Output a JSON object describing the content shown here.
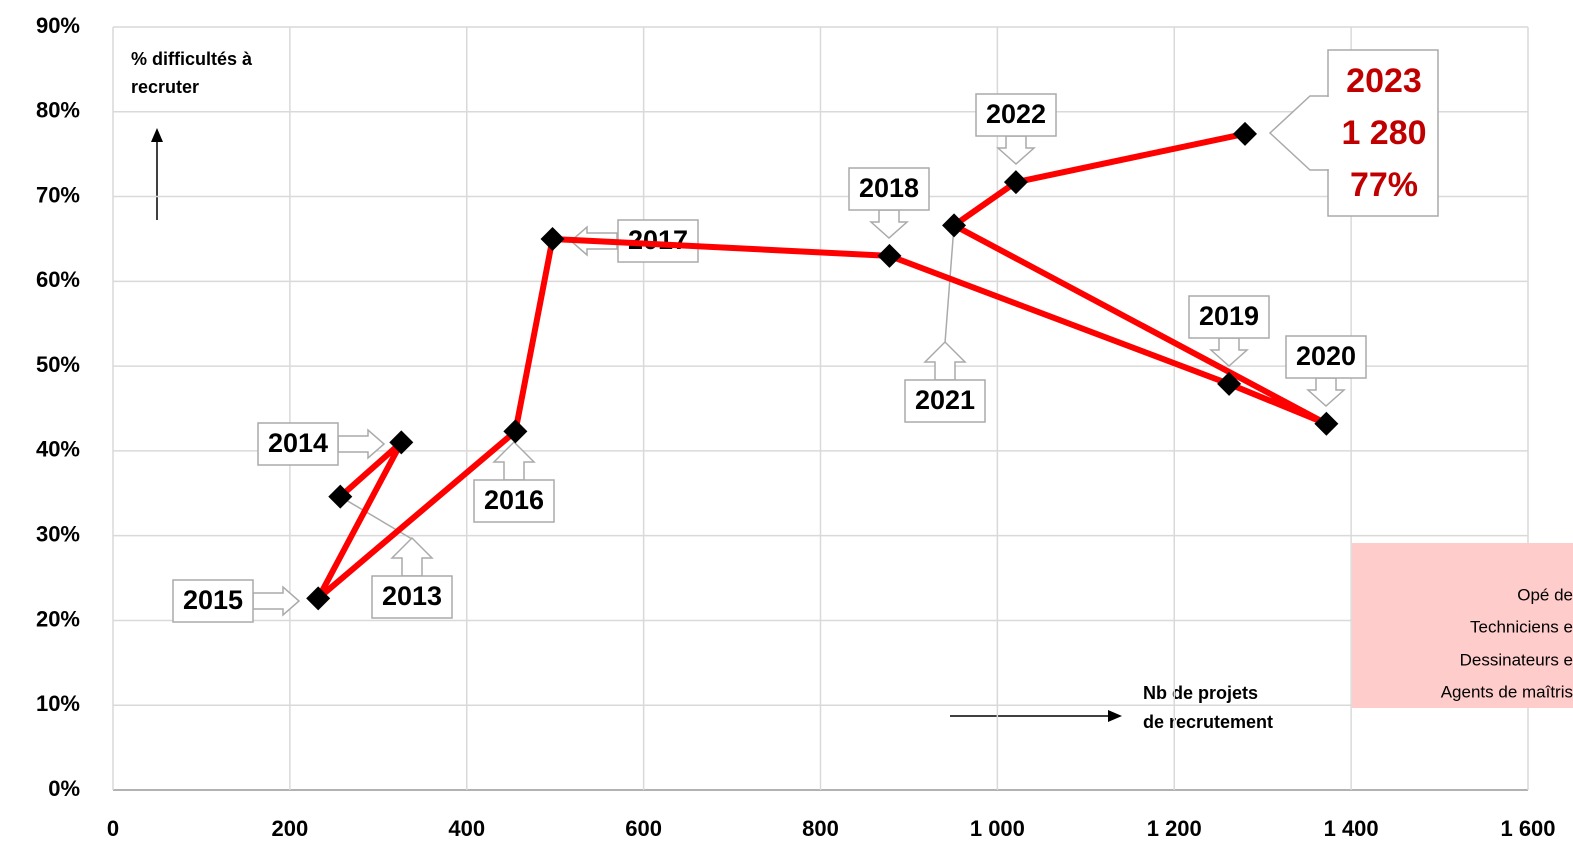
{
  "chart_data": {
    "type": "line",
    "x": [
      257,
      326,
      232,
      455,
      497,
      878,
      1262,
      1372,
      951,
      1021,
      1280
    ],
    "series": [
      {
        "color": "#ff0000",
        "values": [
          34.6,
          41.0,
          22.6,
          42.3,
          65.0,
          63.0,
          47.9,
          43.2,
          66.6,
          71.7,
          77.4
        ]
      }
    ],
    "point_labels": [
      "2013",
      "2014",
      "2015",
      "2016",
      "2017",
      "2018",
      "2019",
      "2020",
      "2021",
      "2022",
      "2023"
    ],
    "xlim": [
      0,
      1600
    ],
    "xticks": [
      0,
      200,
      400,
      600,
      800,
      {
        "value": 1000,
        "label": "1 000"
      },
      {
        "value": 1200,
        "label": "1 200"
      },
      {
        "value": 1400,
        "label": "1 400"
      },
      {
        "value": 1600,
        "label": "1 600"
      }
    ],
    "ylim": [
      0,
      90
    ],
    "yticks": [
      {
        "value": 0,
        "label": "0%"
      },
      {
        "value": 10,
        "label": "10%"
      },
      {
        "value": 20,
        "label": "20%"
      },
      {
        "value": 30,
        "label": "30%"
      },
      {
        "value": 40,
        "label": "40%"
      },
      {
        "value": 50,
        "label": "50%"
      },
      {
        "value": 60,
        "label": "60%"
      },
      {
        "value": 70,
        "label": "70%"
      },
      {
        "value": 80,
        "label": "80%"
      },
      {
        "value": 90,
        "label": "90%"
      }
    ],
    "grid": true,
    "y_axis_label": [
      "% difficultés à",
      "recruter"
    ],
    "x_axis_label": [
      "Nb de projets",
      "de recrutement"
    ],
    "highlight": [
      "2023",
      "1 280",
      "77%"
    ],
    "side_note": [
      "Opé de",
      "Techniciens e",
      "Dessinateurs e",
      "Agents de maîtris"
    ]
  }
}
